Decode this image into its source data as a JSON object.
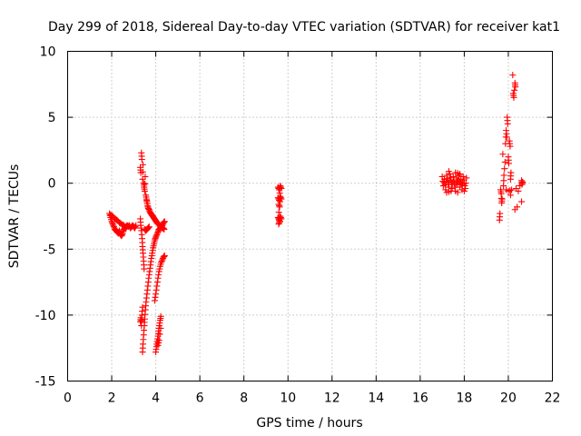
{
  "chart_data": {
    "type": "scatter",
    "title": "Day 299 of 2018, Sidereal Day-to-day VTEC variation (SDTVAR) for receiver kat1",
    "xlabel": "GPS time / hours",
    "ylabel": "SDTVAR / TECUs",
    "xlim": [
      0,
      22
    ],
    "ylim": [
      -15,
      10
    ],
    "xticks": [
      "0",
      "2",
      "4",
      "6",
      "8",
      "10",
      "12",
      "14",
      "16",
      "18",
      "20",
      "22"
    ],
    "yticks": [
      "10",
      "5",
      "0",
      "-5",
      "-10",
      "-15"
    ],
    "grid": true,
    "marker": "+",
    "color": "#ff0000",
    "series": [
      {
        "name": "SDTVAR",
        "segments": [
          {
            "desc": "early cluster 1.9-3.2h",
            "points": [
              [
                1.9,
                -2.3
              ],
              [
                1.95,
                -2.6
              ],
              [
                2.0,
                -2.9
              ],
              [
                2.05,
                -3.1
              ],
              [
                2.1,
                -3.3
              ],
              [
                2.15,
                -3.5
              ],
              [
                2.2,
                -3.6
              ],
              [
                2.25,
                -3.7
              ],
              [
                2.3,
                -3.8
              ],
              [
                2.35,
                -3.6
              ],
              [
                2.4,
                -3.9
              ],
              [
                2.45,
                -4.0
              ],
              [
                2.5,
                -3.8
              ],
              [
                2.55,
                -3.5
              ],
              [
                2.6,
                -3.4
              ],
              [
                2.65,
                -3.3
              ],
              [
                2.7,
                -3.2
              ],
              [
                2.75,
                -3.3
              ],
              [
                2.8,
                -3.2
              ],
              [
                2.85,
                -3.4
              ],
              [
                2.9,
                -3.3
              ],
              [
                2.95,
                -3.2
              ],
              [
                3.0,
                -3.3
              ],
              [
                3.05,
                -3.4
              ],
              [
                3.1,
                -3.2
              ],
              [
                1.95,
                -2.4
              ],
              [
                2.05,
                -2.5
              ],
              [
                2.15,
                -2.7
              ],
              [
                2.25,
                -2.8
              ],
              [
                2.35,
                -3.0
              ],
              [
                2.45,
                -3.1
              ],
              [
                2.55,
                -3.2
              ],
              [
                2.65,
                -3.4
              ]
            ]
          },
          {
            "desc": "upper descending arc 3.3-4.4h",
            "points": [
              [
                3.3,
                1.2
              ],
              [
                3.32,
                0.8
              ],
              [
                3.35,
                2.3
              ],
              [
                3.37,
                1.8
              ],
              [
                3.4,
                0.3
              ],
              [
                3.42,
                1.4
              ],
              [
                3.45,
                0.0
              ],
              [
                3.47,
                -0.3
              ],
              [
                3.5,
                -0.6
              ],
              [
                3.52,
                0.5
              ],
              [
                3.55,
                -0.9
              ],
              [
                3.58,
                -1.2
              ],
              [
                3.6,
                -1.4
              ],
              [
                3.63,
                -1.7
              ],
              [
                3.66,
                -1.9
              ],
              [
                3.7,
                -2.0
              ],
              [
                3.74,
                -2.2
              ],
              [
                3.78,
                -2.3
              ],
              [
                3.82,
                -2.4
              ],
              [
                3.86,
                -2.5
              ],
              [
                3.9,
                -2.6
              ],
              [
                3.94,
                -2.7
              ],
              [
                3.98,
                -2.8
              ],
              [
                4.02,
                -2.9
              ],
              [
                4.06,
                -3.0
              ],
              [
                4.1,
                -3.1
              ],
              [
                4.14,
                -3.1
              ],
              [
                4.18,
                -3.2
              ],
              [
                4.22,
                -3.3
              ],
              [
                4.26,
                -3.3
              ],
              [
                4.3,
                -3.4
              ],
              [
                4.34,
                -3.4
              ],
              [
                4.38,
                -3.5
              ]
            ]
          },
          {
            "desc": "steep descending branch 3.3-3.9h",
            "points": [
              [
                3.3,
                -2.7
              ],
              [
                3.32,
                -3.2
              ],
              [
                3.35,
                -3.6
              ],
              [
                3.38,
                -4.2
              ],
              [
                3.4,
                -4.8
              ],
              [
                3.42,
                -5.3
              ],
              [
                3.45,
                -5.9
              ],
              [
                3.47,
                -6.5
              ],
              [
                3.5,
                -3.5
              ],
              [
                3.55,
                -3.6
              ],
              [
                3.6,
                -3.5
              ],
              [
                3.65,
                -3.4
              ],
              [
                3.7,
                -3.3
              ]
            ]
          },
          {
            "desc": "rising branch 3.4-4.4h",
            "points": [
              [
                3.4,
                -12.8
              ],
              [
                3.42,
                -12.2
              ],
              [
                3.45,
                -11.5
              ],
              [
                3.48,
                -10.8
              ],
              [
                3.5,
                -10.3
              ],
              [
                3.53,
                -9.6
              ],
              [
                3.56,
                -9.0
              ],
              [
                3.6,
                -8.4
              ],
              [
                3.64,
                -7.8
              ],
              [
                3.68,
                -7.2
              ],
              [
                3.72,
                -6.7
              ],
              [
                3.76,
                -6.2
              ],
              [
                3.8,
                -5.7
              ],
              [
                3.84,
                -5.3
              ],
              [
                3.88,
                -4.9
              ],
              [
                3.92,
                -4.6
              ],
              [
                3.96,
                -4.3
              ],
              [
                4.0,
                -4.1
              ],
              [
                4.05,
                -3.9
              ],
              [
                4.1,
                -3.7
              ],
              [
                4.15,
                -3.5
              ],
              [
                4.2,
                -3.4
              ],
              [
                4.25,
                -3.3
              ],
              [
                4.3,
                -3.2
              ],
              [
                4.35,
                -3.0
              ],
              [
                4.4,
                -2.9
              ]
            ]
          },
          {
            "desc": "left lower cluster 3.3-3.5h",
            "points": [
              [
                3.3,
                -10.5
              ],
              [
                3.32,
                -10.2
              ],
              [
                3.35,
                -10.8
              ],
              [
                3.37,
                -10.0
              ],
              [
                3.4,
                -9.4
              ]
            ]
          },
          {
            "desc": "lower rising arc 4.0-4.4h",
            "points": [
              [
                4.0,
                -12.8
              ],
              [
                4.03,
                -12.4
              ],
              [
                4.06,
                -12.0
              ],
              [
                4.1,
                -11.6
              ],
              [
                4.13,
                -11.2
              ],
              [
                4.16,
                -10.8
              ],
              [
                4.2,
                -10.4
              ],
              [
                4.23,
                -10.1
              ],
              [
                4.1,
                -12.3
              ],
              [
                4.15,
                -11.9
              ],
              [
                4.22,
                -11.0
              ]
            ]
          },
          {
            "desc": "middle arc 4.1-4.4h",
            "points": [
              [
                3.95,
                -8.9
              ],
              [
                4.0,
                -8.4
              ],
              [
                4.05,
                -7.8
              ],
              [
                4.1,
                -7.2
              ],
              [
                4.15,
                -6.7
              ],
              [
                4.2,
                -6.3
              ],
              [
                4.25,
                -6.0
              ],
              [
                4.3,
                -5.8
              ],
              [
                4.35,
                -5.6
              ],
              [
                4.4,
                -5.5
              ]
            ]
          },
          {
            "desc": "cluster near 9.6h",
            "points": [
              [
                9.55,
                -0.3
              ],
              [
                9.6,
                -0.5
              ],
              [
                9.65,
                -0.2
              ],
              [
                9.7,
                -0.4
              ],
              [
                9.55,
                -1.1
              ],
              [
                9.6,
                -1.3
              ],
              [
                9.65,
                -1.0
              ],
              [
                9.7,
                -1.2
              ],
              [
                9.58,
                -1.6
              ],
              [
                9.62,
                -1.8
              ],
              [
                9.55,
                -2.6
              ],
              [
                9.6,
                -2.8
              ],
              [
                9.65,
                -2.5
              ],
              [
                9.7,
                -2.7
              ],
              [
                9.58,
                -3.1
              ],
              [
                9.62,
                -2.9
              ]
            ]
          },
          {
            "desc": "cluster 17-18h",
            "points": [
              [
                17.0,
                0.5
              ],
              [
                17.05,
                -0.2
              ],
              [
                17.1,
                0.3
              ],
              [
                17.15,
                -0.5
              ],
              [
                17.2,
                0.6
              ],
              [
                17.25,
                0.1
              ],
              [
                17.3,
                -0.3
              ],
              [
                17.35,
                0.7
              ],
              [
                17.4,
                0.2
              ],
              [
                17.45,
                -0.4
              ],
              [
                17.5,
                0.5
              ],
              [
                17.55,
                0.0
              ],
              [
                17.6,
                -0.6
              ],
              [
                17.65,
                0.4
              ],
              [
                17.7,
                -0.1
              ],
              [
                17.75,
                0.6
              ],
              [
                17.8,
                -0.3
              ],
              [
                17.85,
                0.3
              ],
              [
                17.9,
                -0.5
              ],
              [
                17.95,
                0.5
              ],
              [
                18.0,
                0.0
              ],
              [
                18.05,
                -0.4
              ],
              [
                18.1,
                0.4
              ],
              [
                17.2,
                -0.7
              ],
              [
                17.4,
                -0.6
              ],
              [
                17.6,
                0.8
              ],
              [
                17.8,
                0.7
              ],
              [
                18.0,
                -0.6
              ],
              [
                17.3,
                0.9
              ],
              [
                17.7,
                -0.7
              ]
            ]
          },
          {
            "desc": "cluster 19.6-20.7h",
            "points": [
              [
                19.6,
                -2.8
              ],
              [
                19.62,
                -2.3
              ],
              [
                19.65,
                -0.5
              ],
              [
                19.68,
                -0.8
              ],
              [
                19.7,
                -1.5
              ],
              [
                19.72,
                -1.2
              ],
              [
                19.75,
                2.2
              ],
              [
                19.78,
                -0.2
              ],
              [
                19.8,
                0.6
              ],
              [
                19.85,
                1.6
              ],
              [
                19.87,
                3.0
              ],
              [
                19.9,
                4.0
              ],
              [
                19.93,
                3.5
              ],
              [
                19.95,
                5.0
              ],
              [
                19.97,
                4.5
              ],
              [
                20.0,
                2.0
              ],
              [
                20.02,
                1.5
              ],
              [
                20.05,
                3.2
              ],
              [
                20.08,
                2.8
              ],
              [
                20.1,
                0.3
              ],
              [
                20.12,
                0.8
              ],
              [
                20.0,
                -0.6
              ],
              [
                20.15,
                -0.5
              ],
              [
                20.2,
                8.2
              ],
              [
                20.22,
                6.8
              ],
              [
                20.25,
                6.5
              ],
              [
                20.3,
                7.6
              ],
              [
                20.32,
                7.3
              ],
              [
                20.35,
                -0.4
              ],
              [
                20.4,
                -1.8
              ],
              [
                20.45,
                -0.6
              ],
              [
                20.6,
                0.2
              ],
              [
                20.62,
                -0.1
              ],
              [
                20.65,
                0.1
              ],
              [
                20.6,
                -1.4
              ],
              [
                20.3,
                -2.0
              ],
              [
                19.9,
                -0.5
              ],
              [
                20.1,
                -0.9
              ]
            ]
          }
        ]
      }
    ]
  }
}
